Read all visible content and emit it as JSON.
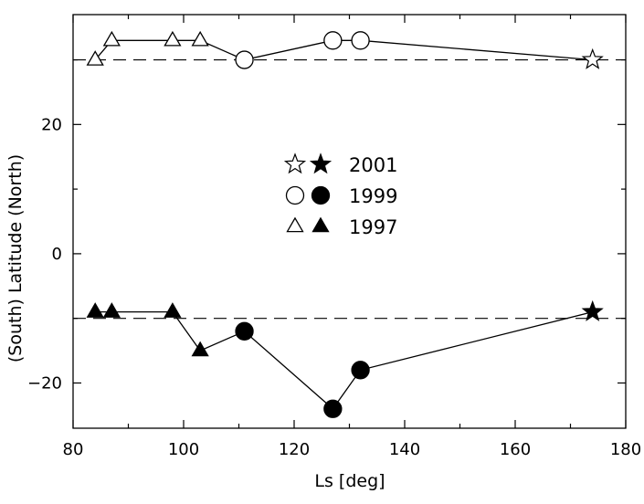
{
  "chart_data": {
    "type": "scatter",
    "title": "",
    "xlabel": "Ls [deg]",
    "ylabel": "(South) Latitude (North)",
    "xlim": [
      80,
      180
    ],
    "ylim": [
      -27,
      37
    ],
    "xticks": [
      80,
      100,
      120,
      140,
      160,
      180
    ],
    "yticks": [
      -20,
      0,
      20
    ],
    "reference_lines": [
      {
        "y": 30,
        "style": "dashed"
      },
      {
        "y": -10,
        "style": "dashed"
      }
    ],
    "legend": {
      "placement": "center",
      "entries": [
        {
          "label": "2001",
          "marker": "star"
        },
        {
          "label": "1999",
          "marker": "circle"
        },
        {
          "label": "1997",
          "marker": "triangle"
        }
      ]
    },
    "series": [
      {
        "hemisphere": "north",
        "fill": "open",
        "points": [
          {
            "x": 84,
            "y": 30,
            "marker": "triangle"
          },
          {
            "x": 87,
            "y": 33,
            "marker": "triangle"
          },
          {
            "x": 98,
            "y": 33,
            "marker": "triangle"
          },
          {
            "x": 103,
            "y": 33,
            "marker": "triangle"
          },
          {
            "x": 111,
            "y": 30,
            "marker": "circle"
          },
          {
            "x": 127,
            "y": 33,
            "marker": "circle"
          },
          {
            "x": 132,
            "y": 33,
            "marker": "circle"
          },
          {
            "x": 174,
            "y": 30,
            "marker": "star"
          }
        ]
      },
      {
        "hemisphere": "south",
        "fill": "filled",
        "points": [
          {
            "x": 84,
            "y": -9,
            "marker": "triangle"
          },
          {
            "x": 87,
            "y": -9,
            "marker": "triangle"
          },
          {
            "x": 98,
            "y": -9,
            "marker": "triangle"
          },
          {
            "x": 103,
            "y": -15,
            "marker": "triangle"
          },
          {
            "x": 111,
            "y": -12,
            "marker": "circle"
          },
          {
            "x": 127,
            "y": -24,
            "marker": "circle"
          },
          {
            "x": 132,
            "y": -18,
            "marker": "circle"
          },
          {
            "x": 174,
            "y": -9,
            "marker": "star"
          }
        ]
      }
    ]
  }
}
